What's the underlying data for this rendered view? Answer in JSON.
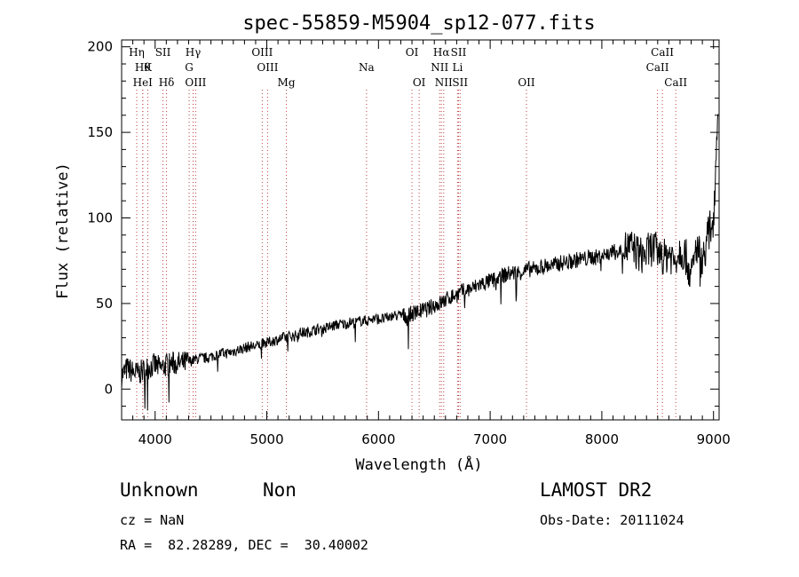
{
  "chart_data": {
    "type": "line",
    "title": "spec-55859-M5904_sp12-077.fits",
    "xlabel": "Wavelength (Å)",
    "ylabel": "Flux (relative)",
    "xlim": [
      3700,
      9050
    ],
    "ylim": [
      -18,
      204
    ],
    "x_ticks": [
      4000,
      5000,
      6000,
      7000,
      8000,
      9000
    ],
    "y_ticks": [
      0,
      50,
      100,
      150,
      200
    ],
    "grid": false,
    "series": [
      {
        "x": [
          3700,
          3750,
          3800,
          3850,
          3900,
          3950,
          4000,
          4050,
          4100,
          4150,
          4200,
          4250,
          4300,
          4350,
          4400,
          4450,
          4500,
          4550,
          4600,
          4650,
          4700,
          4750,
          4800,
          4850,
          4900,
          4950,
          5000,
          5050,
          5100,
          5150,
          5200,
          5250,
          5300,
          5350,
          5400,
          5450,
          5500,
          5550,
          5600,
          5650,
          5700,
          5750,
          5800,
          5850,
          5900,
          5950,
          6000,
          6050,
          6100,
          6150,
          6200,
          6250,
          6300,
          6350,
          6400,
          6450,
          6500,
          6550,
          6600,
          6650,
          6700,
          6750,
          6800,
          6850,
          6900,
          6950,
          7000,
          7050,
          7100,
          7150,
          7200,
          7250,
          7300,
          7350,
          7400,
          7450,
          7500,
          7550,
          7600,
          7650,
          7700,
          7750,
          7800,
          7850,
          7900,
          7950,
          8000,
          8050,
          8100,
          8150,
          8200,
          8250,
          8300,
          8350,
          8400,
          8450,
          8500,
          8550,
          8600,
          8650,
          8700,
          8750,
          8800,
          8850,
          8900,
          8950,
          9000,
          9020,
          9040
        ],
        "y": [
          8,
          12,
          10,
          9,
          11,
          13,
          14,
          12,
          14,
          15,
          15,
          15,
          16,
          17,
          18,
          18,
          19,
          20,
          21,
          21,
          22,
          23,
          24,
          25,
          25,
          26,
          27,
          28,
          29,
          30,
          31,
          31,
          33,
          33,
          34,
          35,
          35,
          36,
          37,
          38,
          38,
          39,
          39,
          40,
          40,
          41,
          41,
          41,
          42,
          43,
          43,
          43,
          44,
          45,
          46,
          47,
          49,
          50,
          52,
          54,
          55,
          57,
          58,
          59,
          61,
          62,
          63,
          64,
          66,
          67,
          68,
          68,
          69,
          70,
          70,
          71,
          72,
          72,
          73,
          74,
          74,
          75,
          76,
          76,
          77,
          77,
          78,
          79,
          80,
          80,
          82,
          83,
          81,
          78,
          79,
          83,
          80,
          76,
          80,
          75,
          82,
          78,
          65,
          84,
          74,
          90,
          100,
          130,
          170
        ]
      }
    ],
    "line_annotations": [
      {
        "x": 3835,
        "label": "Hη",
        "row": 0
      },
      {
        "x": 3889,
        "label": "Hθ",
        "row": 1
      },
      {
        "x": 3934,
        "label": "K",
        "row": 1
      },
      {
        "x": 3889,
        "label": "HeI",
        "row": 2
      },
      {
        "x": 4070,
        "label": "SII",
        "row": 0
      },
      {
        "x": 4102,
        "label": "Hδ",
        "row": 2
      },
      {
        "x": 4340,
        "label": "Hγ",
        "row": 0
      },
      {
        "x": 4305,
        "label": "G",
        "row": 1
      },
      {
        "x": 4363,
        "label": "OIII",
        "row": 2
      },
      {
        "x": 4959,
        "label": "OIII",
        "row": 0
      },
      {
        "x": 5007,
        "label": "OIII",
        "row": 1
      },
      {
        "x": 5175,
        "label": "Mg",
        "row": 2
      },
      {
        "x": 5893,
        "label": "Na",
        "row": 1
      },
      {
        "x": 6300,
        "label": "OI",
        "row": 0
      },
      {
        "x": 6364,
        "label": "OI",
        "row": 2
      },
      {
        "x": 6563,
        "label": "Hα",
        "row": 0
      },
      {
        "x": 6548,
        "label": "NII",
        "row": 1
      },
      {
        "x": 6584,
        "label": "NII",
        "row": 2
      },
      {
        "x": 6717,
        "label": "SII",
        "row": 0
      },
      {
        "x": 6708,
        "label": "Li",
        "row": 1
      },
      {
        "x": 6731,
        "label": "SII",
        "row": 2
      },
      {
        "x": 7325,
        "label": "OII",
        "row": 2
      },
      {
        "x": 8542,
        "label": "CaII",
        "row": 0
      },
      {
        "x": 8498,
        "label": "CaII",
        "row": 1
      },
      {
        "x": 8662,
        "label": "CaII",
        "row": 2
      }
    ]
  },
  "info": {
    "class_label": "Unknown",
    "subclass_label": "Non",
    "survey": "LAMOST DR2",
    "redshift_line": "cz = NaN",
    "obs_date_line": "Obs-Date: 20111024",
    "coords_line": "RA =  82.28289, DEC =  30.40002"
  }
}
